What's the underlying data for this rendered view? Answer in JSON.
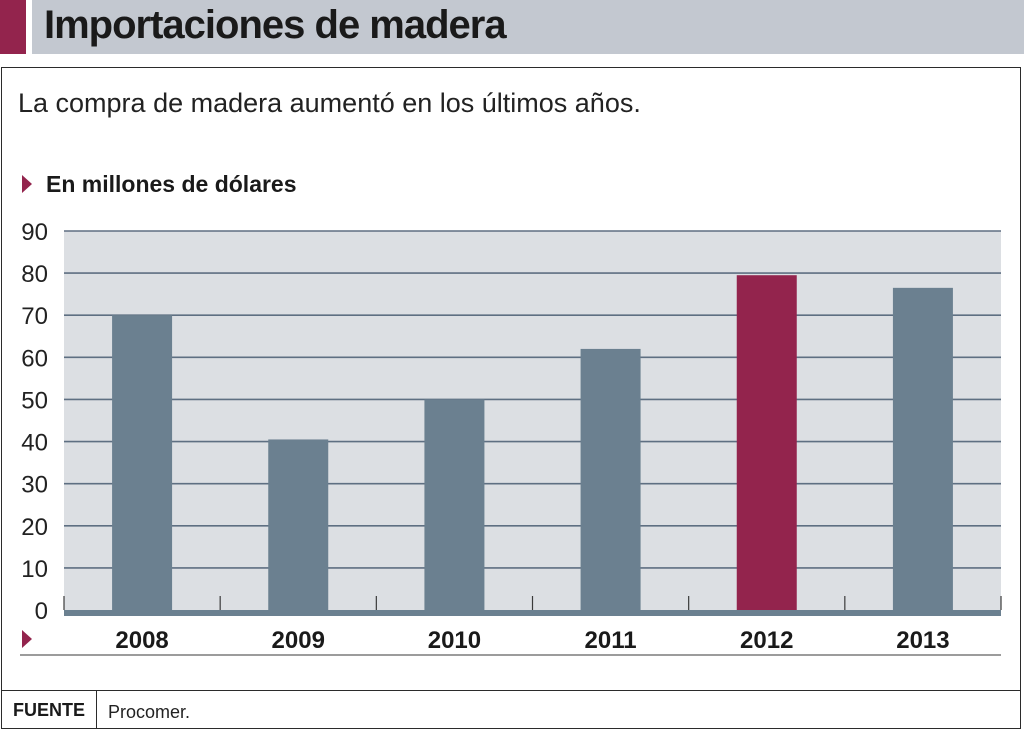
{
  "header": {
    "title": "Importaciones de madera",
    "subtitle": "La compra de madera aumentó en los últimos años.",
    "unit_label": "En millones de dólares"
  },
  "footer": {
    "source_label": "FUENTE",
    "source_value": "Procomer."
  },
  "colors": {
    "bar": "#6b8090",
    "highlight": "#93244d",
    "plot_bg": "#dcdfe3",
    "gridline": "#5e6f82",
    "baseline": "#6b8090",
    "accent": "#93244d"
  },
  "chart_data": {
    "type": "bar",
    "title": "Importaciones de madera",
    "subtitle": "La compra de madera aumentó en los últimos años.",
    "ylabel": "En millones de dólares",
    "xlabel": "",
    "categories": [
      "2008",
      "2009",
      "2010",
      "2011",
      "2012",
      "2013"
    ],
    "values": [
      70,
      40.5,
      50,
      62,
      79.5,
      76.5
    ],
    "highlight_category": "2012",
    "ylim": [
      0,
      90
    ],
    "yticks": [
      0,
      10,
      20,
      30,
      40,
      50,
      60,
      70,
      80,
      90
    ],
    "grid": true,
    "legend": "none"
  }
}
